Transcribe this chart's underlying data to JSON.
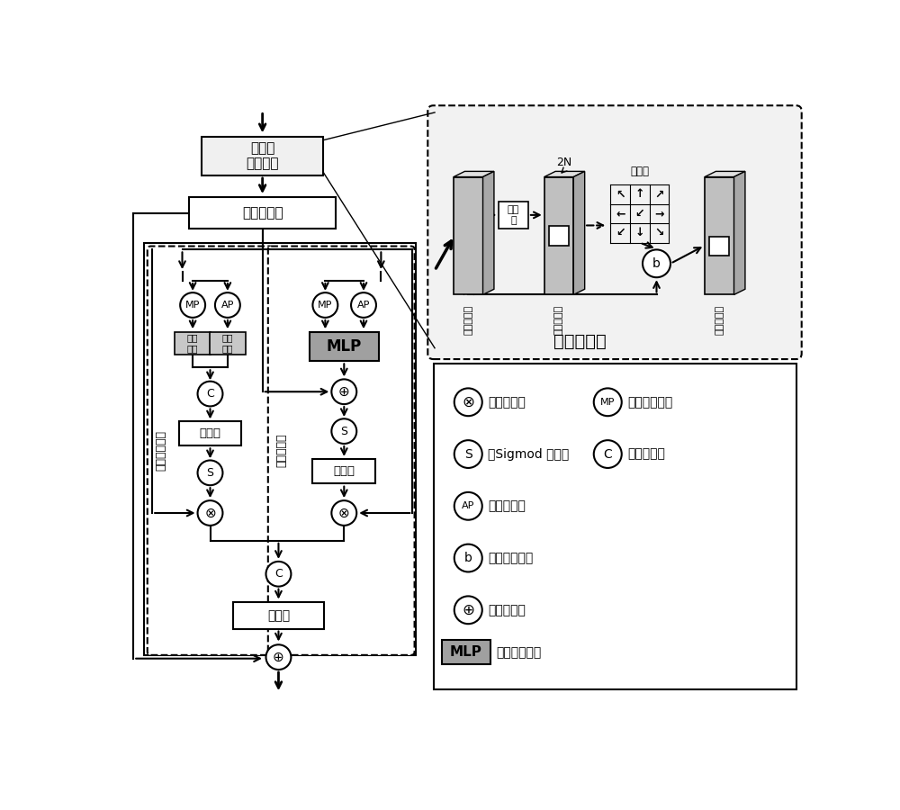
{
  "bg_color": "#ffffff",
  "deform_conv_unit_label": "可变形\n卷积单元",
  "conv_layer_unit_label": "卷积层单元",
  "deform_conv_box_label": "可变形卷积",
  "left_branch_label": "变形回复增强",
  "right_branch_label": "偏移形增强",
  "conv_layer": "卷积层",
  "conv_layer_unit": "卷积层单元",
  "input_feat": "输入特征图",
  "output_feat": "输出特征图",
  "calc_offset": "计算偏移量",
  "offset_label": "偏移量",
  "deform_conv_label": "可变形卷积",
  "legend": [
    [
      "⊗",
      "：像素点乘",
      "MP",
      "：最大值池化"
    ],
    [
      "S",
      "：Sigmod 归一化",
      "C",
      "：通道合并"
    ],
    [
      "AP",
      "：均值池化"
    ],
    [
      "b",
      "：双线性插值"
    ],
    [
      "⊕",
      "：像素加和"
    ],
    [
      "MLP",
      "：多层感知机"
    ]
  ]
}
